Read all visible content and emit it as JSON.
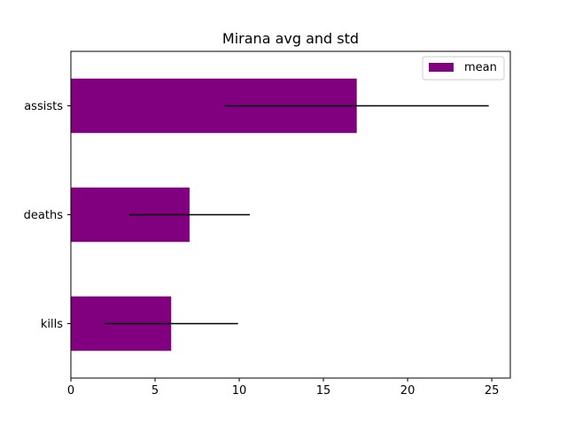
{
  "chart_data": {
    "type": "bar",
    "orientation": "horizontal",
    "title": "Mirana avg and std",
    "xlabel": "",
    "ylabel": "",
    "categories": [
      "kills",
      "deaths",
      "assists"
    ],
    "series": [
      {
        "name": "mean",
        "values": [
          5.96,
          7.05,
          16.98
        ],
        "error": [
          3.97,
          3.58,
          7.84
        ],
        "color": "#800080"
      }
    ],
    "error_color": "#000000",
    "xlim": [
      0,
      26.1
    ],
    "xticks": [
      0,
      5,
      10,
      15,
      20,
      25
    ],
    "grid": false,
    "legend_position": "upper right"
  }
}
